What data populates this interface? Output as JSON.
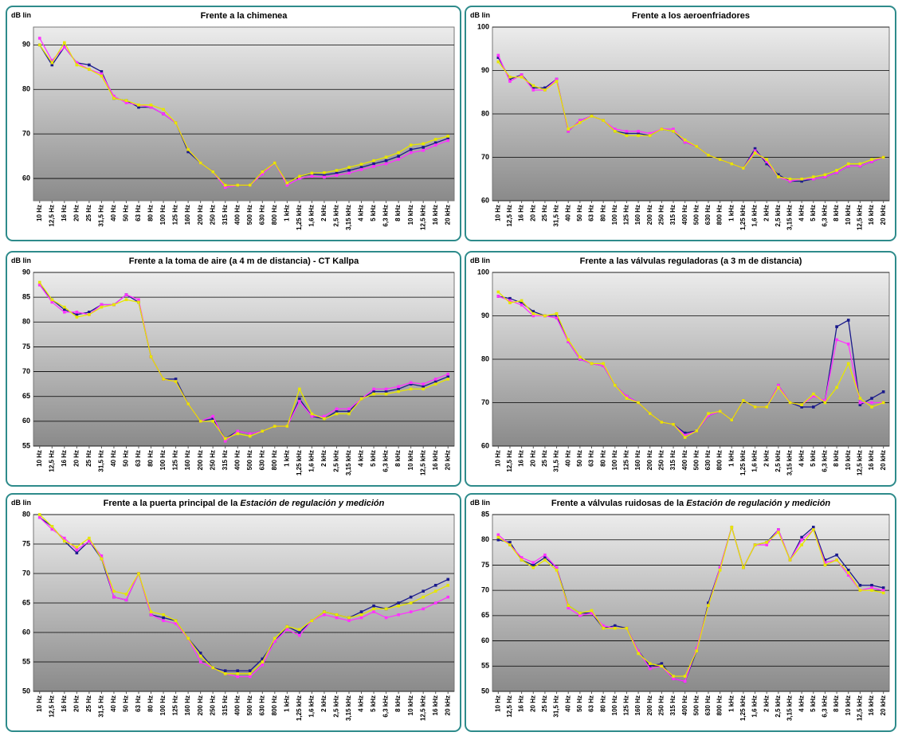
{
  "chart_data": [
    {
      "type": "line",
      "y_label": "dB lin",
      "title": "Frente a la chimenea",
      "categories": [
        "10 Hz",
        "12,5 Hz",
        "16 Hz",
        "20 Hz",
        "25 Hz",
        "31,5 Hz",
        "40 Hz",
        "50 Hz",
        "63 Hz",
        "80 Hz",
        "100 Hz",
        "125 Hz",
        "160 Hz",
        "200 Hz",
        "250 Hz",
        "315 Hz",
        "400 Hz",
        "500 Hz",
        "630 Hz",
        "800 Hz",
        "1 kHz",
        "1,25 kHz",
        "1,6 kHz",
        "2 kHz",
        "2,5 kHz",
        "3,15 kHz",
        "4 kHz",
        "5 kHz",
        "6,3 kHz",
        "8 kHz",
        "10 kHz",
        "12,5 kHz",
        "16 kHz",
        "20 kHz"
      ],
      "series": [
        {
          "color": "#1a1a8c",
          "values": [
            90,
            85.5,
            89.5,
            86,
            85.5,
            84,
            78,
            77.5,
            76,
            76,
            74.5,
            72.5,
            66,
            63.5,
            61.5,
            58.5,
            58.5,
            58.5,
            61.5,
            63.5,
            59,
            60.5,
            61,
            60.8,
            61.2,
            61.8,
            62.5,
            63.3,
            64,
            65,
            66.5,
            67,
            68,
            69
          ]
        },
        {
          "color": "#ff33ff",
          "values": [
            91.5,
            86.5,
            89.5,
            86,
            84.5,
            83.5,
            78.5,
            77,
            76.5,
            76,
            74.5,
            72.5,
            66.5,
            63.5,
            61.5,
            58,
            58.5,
            58.5,
            61,
            63.5,
            58.5,
            60,
            60.5,
            60.3,
            60.7,
            61.2,
            62,
            62.7,
            63.3,
            64.3,
            65.8,
            66.3,
            67.5,
            68.5
          ]
        },
        {
          "color": "#e6e600",
          "values": [
            90,
            86,
            90.5,
            85.5,
            84.5,
            83,
            78,
            77.5,
            76.5,
            76.5,
            75.5,
            72.5,
            66.5,
            63.5,
            61.5,
            58.5,
            58.5,
            58.5,
            61.5,
            63.5,
            59,
            60.5,
            61.2,
            61.3,
            61.8,
            62.5,
            63.2,
            64,
            64.8,
            65.8,
            67.5,
            67.8,
            68.8,
            69.5
          ]
        }
      ],
      "ylim": [
        55,
        94
      ],
      "yticks": [
        60,
        70,
        80,
        90
      ],
      "grid": true
    },
    {
      "type": "line",
      "y_label": "dB lin",
      "title": "Frente a los aeroenfriadores",
      "categories": [
        "10 Hz",
        "12,5 Hz",
        "16 Hz",
        "20 Hz",
        "25 Hz",
        "31,5 Hz",
        "40 Hz",
        "50 Hz",
        "63 Hz",
        "80 Hz",
        "100 Hz",
        "125 Hz",
        "160 Hz",
        "200 Hz",
        "250 Hz",
        "315 Hz",
        "400 Hz",
        "500 Hz",
        "630 Hz",
        "800 Hz",
        "1 kHz",
        "1,25 kHz",
        "1,6 kHz",
        "2 kHz",
        "2,5 kHz",
        "3,15 kHz",
        "4 kHz",
        "5 kHz",
        "6,3 kHz",
        "8 kHz",
        "10 kHz",
        "12,5 kHz",
        "16 kHz",
        "20 kHz"
      ],
      "series": [
        {
          "color": "#1a1a8c",
          "values": [
            93,
            88,
            89,
            86,
            86,
            88,
            76,
            78.5,
            79.5,
            78.5,
            76,
            75.5,
            75.5,
            75,
            76.5,
            76,
            73.5,
            72.5,
            70.5,
            69.5,
            68.5,
            67.5,
            72,
            68.5,
            66,
            64.5,
            64.5,
            65,
            65.5,
            66.5,
            68,
            68,
            69,
            70
          ]
        },
        {
          "color": "#ff33ff",
          "values": [
            93.5,
            87.5,
            89,
            85.5,
            85.5,
            88,
            76,
            78.5,
            79.5,
            78.5,
            76.5,
            76,
            76,
            75.5,
            76.5,
            76.5,
            73.5,
            72.5,
            70.5,
            69.5,
            68.5,
            67.5,
            71.5,
            69,
            65.5,
            64.5,
            65,
            65,
            65.5,
            66.5,
            68,
            68,
            69,
            70
          ]
        },
        {
          "color": "#e6e600",
          "values": [
            92,
            88.5,
            88.5,
            86.5,
            85.5,
            87.5,
            76.5,
            78,
            79.5,
            78.5,
            76,
            75,
            75,
            75,
            76.5,
            76,
            74,
            72.5,
            70.5,
            69.5,
            68.5,
            67.5,
            71,
            69.5,
            65.5,
            65,
            65,
            65.5,
            66,
            67,
            68.5,
            68.5,
            69.5,
            70
          ]
        }
      ],
      "ylim": [
        60,
        100
      ],
      "yticks": [
        60,
        70,
        80,
        90,
        100
      ],
      "grid": true
    },
    {
      "type": "line",
      "y_label": "dB lin",
      "title": "Frente a la toma de aire (a 4 m de distancia) - CT Kallpa",
      "categories": [
        "10 Hz",
        "12,5 Hz",
        "16 Hz",
        "20 Hz",
        "25 Hz",
        "31,5 Hz",
        "40 Hz",
        "50 Hz",
        "63 Hz",
        "80 Hz",
        "100 Hz",
        "125 Hz",
        "160 Hz",
        "200 Hz",
        "250 Hz",
        "315 Hz",
        "400 Hz",
        "500 Hz",
        "630 Hz",
        "800 Hz",
        "1 kHz",
        "1,25 kHz",
        "1,6 kHz",
        "2 kHz",
        "2,5 kHz",
        "3,15 kHz",
        "4 kHz",
        "5 kHz",
        "6,3 kHz",
        "8 kHz",
        "10 kHz",
        "12,5 kHz",
        "16 kHz",
        "20 kHz"
      ],
      "series": [
        {
          "color": "#1a1a8c",
          "values": [
            87.5,
            84.5,
            82.5,
            81.5,
            82,
            83.5,
            83.5,
            85.5,
            84,
            73,
            68.5,
            68.5,
            63.5,
            60,
            60.5,
            56.5,
            58,
            57.5,
            58,
            59,
            59,
            64.5,
            61,
            60.5,
            62,
            62,
            64.5,
            66,
            66,
            66.5,
            67.5,
            67,
            68,
            69
          ]
        },
        {
          "color": "#ff33ff",
          "values": [
            87.5,
            84,
            82,
            82,
            81.5,
            83.5,
            83.5,
            85.5,
            84.5,
            73,
            68.5,
            68,
            63.5,
            60,
            61,
            56,
            58,
            57.5,
            58,
            59,
            59,
            64,
            61,
            61,
            62.5,
            62.5,
            64.5,
            66.5,
            66.5,
            67,
            67.8,
            67.5,
            68.5,
            69.5
          ]
        },
        {
          "color": "#e6e600",
          "values": [
            88,
            84.5,
            83,
            81,
            81.5,
            83,
            83.5,
            84.5,
            84,
            73,
            68.5,
            68,
            63.5,
            60,
            60,
            56.5,
            57.5,
            57,
            58,
            59,
            59,
            66.5,
            61.5,
            60.5,
            61.5,
            61.5,
            64.5,
            65.5,
            65.5,
            66,
            66.5,
            66.5,
            67.5,
            68.5
          ]
        }
      ],
      "ylim": [
        55,
        90
      ],
      "yticks": [
        55,
        60,
        65,
        70,
        75,
        80,
        85,
        90
      ],
      "grid": true
    },
    {
      "type": "line",
      "y_label": "dB lin",
      "title": "Frente a las válvulas reguladoras (a 3 m de distancia)",
      "categories": [
        "10 Hz",
        "12,5 Hz",
        "16 Hz",
        "20 Hz",
        "25 Hz",
        "31,5 Hz",
        "40 Hz",
        "50 Hz",
        "63 Hz",
        "80 Hz",
        "100 Hz",
        "125 Hz",
        "160 Hz",
        "200 Hz",
        "250 Hz",
        "315 Hz",
        "400 Hz",
        "500 Hz",
        "630 Hz",
        "800 Hz",
        "1 kHz",
        "1,25 kHz",
        "1,6 kHz",
        "2 kHz",
        "2,5 kHz",
        "3,15 kHz",
        "4 kHz",
        "5 kHz",
        "6,3 kHz",
        "8 kHz",
        "10 kHz",
        "12,5 kHz",
        "16 kHz",
        "20 kHz"
      ],
      "series": [
        {
          "color": "#1a1a8c",
          "values": [
            94.5,
            94,
            93,
            91,
            90,
            90,
            84,
            80,
            79,
            78.5,
            74,
            71.5,
            70,
            67.5,
            65.5,
            65,
            63,
            63.5,
            67,
            68,
            66,
            70.5,
            69,
            69,
            74,
            70,
            69,
            69,
            70.5,
            87.5,
            89,
            69.5,
            71,
            72.5
          ]
        },
        {
          "color": "#ff33ff",
          "values": [
            94.5,
            93.5,
            92.5,
            90,
            90,
            89.5,
            84,
            80,
            79,
            78.5,
            74,
            71.5,
            70,
            67.5,
            65.5,
            65,
            62.5,
            63.5,
            67,
            68,
            66,
            70.5,
            69,
            69,
            74,
            70,
            69.5,
            71.5,
            70.5,
            84.5,
            83.5,
            70,
            70,
            70
          ]
        },
        {
          "color": "#e6e600",
          "values": [
            95.5,
            93,
            93.5,
            90.5,
            90,
            90.5,
            84.5,
            80.5,
            79,
            79,
            74,
            71,
            70,
            67.5,
            65.5,
            65,
            62,
            63.5,
            67.5,
            68,
            66,
            70.5,
            69,
            69,
            73.5,
            70,
            69.5,
            72,
            70,
            73.5,
            79,
            71,
            69,
            70
          ]
        }
      ],
      "ylim": [
        60,
        100
      ],
      "yticks": [
        60,
        70,
        80,
        90,
        100
      ],
      "grid": true
    },
    {
      "type": "line",
      "y_label": "dB lin",
      "title": "Frente a la puerta principal de la",
      "title_emphasis": "Estación de regulación y medición",
      "categories": [
        "10 Hz",
        "12,5 Hz",
        "16 Hz",
        "20 Hz",
        "25 Hz",
        "31,5 Hz",
        "40 Hz",
        "50 Hz",
        "63 Hz",
        "80 Hz",
        "100 Hz",
        "125 Hz",
        "160 Hz",
        "200 Hz",
        "250 Hz",
        "315 Hz",
        "400 Hz",
        "500 Hz",
        "630 Hz",
        "800 Hz",
        "1 kHz",
        "1,25 kHz",
        "1,6 kHz",
        "2 kHz",
        "2,5 kHz",
        "3,15 kHz",
        "4 kHz",
        "5 kHz",
        "6,3 kHz",
        "8 kHz",
        "10 kHz",
        "12,5 kHz",
        "16 kHz",
        "20 kHz"
      ],
      "series": [
        {
          "color": "#1a1a8c",
          "values": [
            79.5,
            78,
            75.5,
            73.5,
            75.5,
            72.5,
            66,
            65.5,
            70,
            63,
            62.5,
            62,
            59,
            56.5,
            54,
            53.5,
            53.5,
            53.5,
            55.5,
            58.5,
            61,
            60,
            62,
            63.5,
            63,
            62.5,
            63.5,
            64.5,
            64,
            65,
            66,
            67,
            68,
            69
          ]
        },
        {
          "color": "#ff33ff",
          "values": [
            79.5,
            77.5,
            76,
            74,
            75.5,
            73,
            66,
            65.5,
            70,
            63,
            62,
            61.5,
            59,
            55,
            54,
            53,
            52.5,
            52.5,
            54.5,
            58.5,
            60.5,
            59.5,
            62,
            63,
            62.5,
            62,
            62.5,
            63.5,
            62.5,
            63,
            63.5,
            64,
            65,
            66
          ]
        },
        {
          "color": "#e6e600",
          "values": [
            80,
            78,
            75.5,
            74.5,
            76,
            72.5,
            67,
            66.5,
            70,
            63.5,
            63,
            62,
            59,
            56,
            54,
            53,
            53,
            53,
            55,
            59,
            61,
            60.5,
            62,
            63.5,
            63,
            62.5,
            63,
            64,
            64,
            64.5,
            65,
            66,
            67,
            68
          ]
        }
      ],
      "ylim": [
        50,
        80
      ],
      "yticks": [
        50,
        55,
        60,
        65,
        70,
        75,
        80
      ],
      "grid": true
    },
    {
      "type": "line",
      "y_label": "dB lin",
      "title": "Frente a válvulas ruidosas de la",
      "title_emphasis": "Estación de regulación y medición",
      "categories": [
        "10 Hz",
        "12,5 Hz",
        "16 Hz",
        "20 Hz",
        "25 Hz",
        "31,5 Hz",
        "40 Hz",
        "50 Hz",
        "63 Hz",
        "80 Hz",
        "100 Hz",
        "125 Hz",
        "160 Hz",
        "200 Hz",
        "250 Hz",
        "315 Hz",
        "400 Hz",
        "500 Hz",
        "630 Hz",
        "800 Hz",
        "1 kHz",
        "1,25 kHz",
        "1,6 kHz",
        "2 kHz",
        "2,5 kHz",
        "3,15 kHz",
        "4 kHz",
        "5 kHz",
        "6,3 kHz",
        "8 kHz",
        "10 kHz",
        "12,5 kHz",
        "16 kHz",
        "20 kHz"
      ],
      "series": [
        {
          "color": "#1a1a8c",
          "values": [
            80,
            79.5,
            76,
            75,
            76.5,
            74.5,
            67,
            65.5,
            65.5,
            62.5,
            63,
            62.5,
            58,
            55,
            55.5,
            52.5,
            52,
            58,
            67.5,
            74.5,
            82.5,
            74.5,
            79,
            79.5,
            82,
            76,
            80.5,
            82.5,
            76,
            77,
            74,
            71,
            71,
            70.5
          ]
        },
        {
          "color": "#ff33ff",
          "values": [
            81,
            79,
            76.5,
            75.5,
            77,
            74.5,
            66.5,
            65,
            65.5,
            63,
            62.5,
            62.5,
            58,
            54.5,
            55,
            52.5,
            52,
            58.5,
            67,
            74.5,
            82.5,
            74.5,
            79,
            79,
            82,
            76,
            80,
            82,
            75.5,
            76,
            73,
            70,
            70.5,
            70
          ]
        },
        {
          "color": "#e6e600",
          "values": [
            80.5,
            79,
            76,
            74.5,
            76,
            74,
            67,
            65.5,
            66,
            62.5,
            62.5,
            62.5,
            57.5,
            55.5,
            55,
            53,
            53,
            58,
            67,
            74,
            82.5,
            74.5,
            79,
            79.5,
            81.5,
            76,
            79,
            82,
            75,
            76,
            73.5,
            70,
            70,
            69.5
          ]
        }
      ],
      "ylim": [
        50,
        85
      ],
      "yticks": [
        50,
        55,
        60,
        65,
        70,
        75,
        80,
        85
      ],
      "grid": true
    }
  ]
}
